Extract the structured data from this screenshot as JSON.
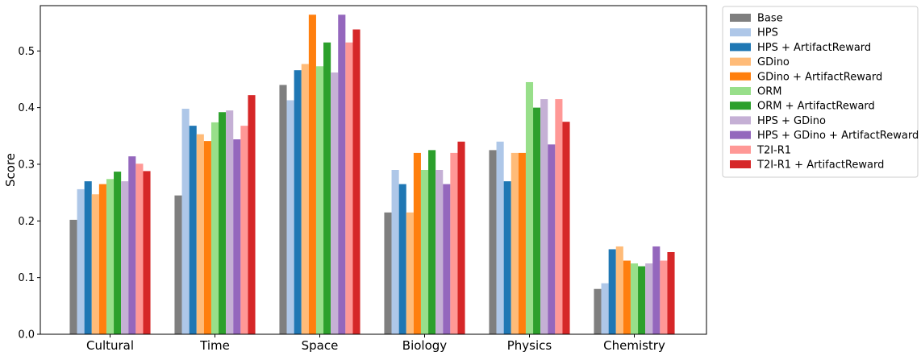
{
  "chart_data": {
    "type": "bar",
    "ylabel": "Score",
    "xlabel": "",
    "title": "",
    "ylim": [
      0,
      0.58
    ],
    "yticks": [
      0.0,
      0.1,
      0.2,
      0.3,
      0.4,
      0.5
    ],
    "ytick_labels": [
      "0.0",
      "0.1",
      "0.2",
      "0.3",
      "0.4",
      "0.5"
    ],
    "grid": false,
    "legend_position": "outside-right-top",
    "categories": [
      "Cultural",
      "Time",
      "Space",
      "Biology",
      "Physics",
      "Chemistry"
    ],
    "series": [
      {
        "name": "Base",
        "color": "#7f7f7f",
        "values": [
          0.202,
          0.245,
          0.44,
          0.215,
          0.325,
          0.08
        ]
      },
      {
        "name": "HPS",
        "color": "#aec7e8",
        "values": [
          0.256,
          0.398,
          0.413,
          0.29,
          0.34,
          0.09
        ]
      },
      {
        "name": "HPS + ArtifactReward",
        "color": "#1f77b4",
        "values": [
          0.27,
          0.368,
          0.466,
          0.265,
          0.27,
          0.15
        ]
      },
      {
        "name": "GDino",
        "color": "#ffbb78",
        "values": [
          0.247,
          0.353,
          0.477,
          0.215,
          0.32,
          0.155
        ]
      },
      {
        "name": "GDino + ArtifactReward",
        "color": "#ff7f0e",
        "values": [
          0.265,
          0.341,
          0.564,
          0.32,
          0.32,
          0.13
        ]
      },
      {
        "name": "ORM",
        "color": "#98df8a",
        "values": [
          0.274,
          0.374,
          0.473,
          0.29,
          0.445,
          0.125
        ]
      },
      {
        "name": "ORM + ArtifactReward",
        "color": "#2ca02c",
        "values": [
          0.287,
          0.392,
          0.515,
          0.325,
          0.4,
          0.12
        ]
      },
      {
        "name": "HPS + GDino",
        "color": "#c5b0d5",
        "values": [
          0.27,
          0.395,
          0.462,
          0.29,
          0.415,
          0.125
        ]
      },
      {
        "name": "HPS + GDino + ArtifactReward",
        "color": "#9467bd",
        "values": [
          0.314,
          0.344,
          0.564,
          0.265,
          0.335,
          0.155
        ]
      },
      {
        "name": "T2I-R1",
        "color": "#ff9896",
        "values": [
          0.301,
          0.368,
          0.515,
          0.32,
          0.415,
          0.13
        ]
      },
      {
        "name": "T2I-R1 + ArtifactReward",
        "color": "#d62728",
        "values": [
          0.288,
          0.422,
          0.538,
          0.34,
          0.375,
          0.145
        ]
      }
    ]
  }
}
